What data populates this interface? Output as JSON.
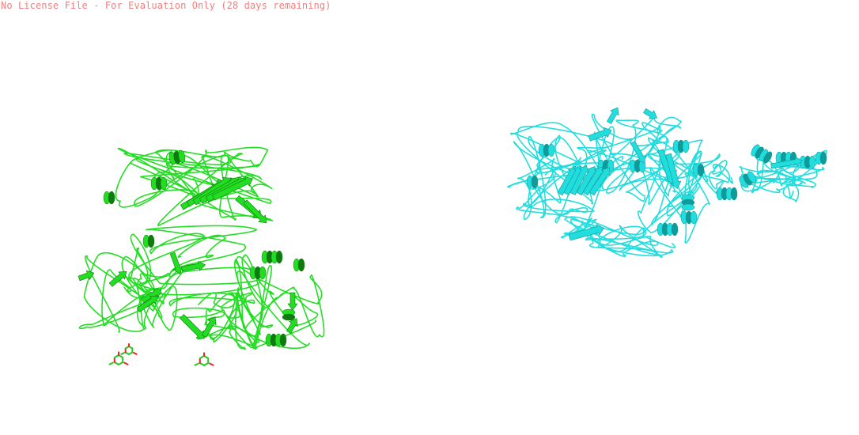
{
  "license_banner": {
    "text": "No License File - For Evaluation Only (28 days remaining)",
    "color": "#f08080"
  },
  "viewer": {
    "background": "#ffffff"
  },
  "structures": [
    {
      "name": "green-protein-chain",
      "representation": "cartoon",
      "color": "#22dd22",
      "shade": "#0f7a0f"
    },
    {
      "name": "cyan-protein-chain",
      "representation": "cartoon",
      "color": "#22dddd",
      "shade": "#109a9a"
    }
  ],
  "ligands": [
    {
      "name": "ligand-sticks",
      "representation": "sticks",
      "carbon_color": "#22cc22",
      "oxygen_color": "#ee2222"
    }
  ]
}
